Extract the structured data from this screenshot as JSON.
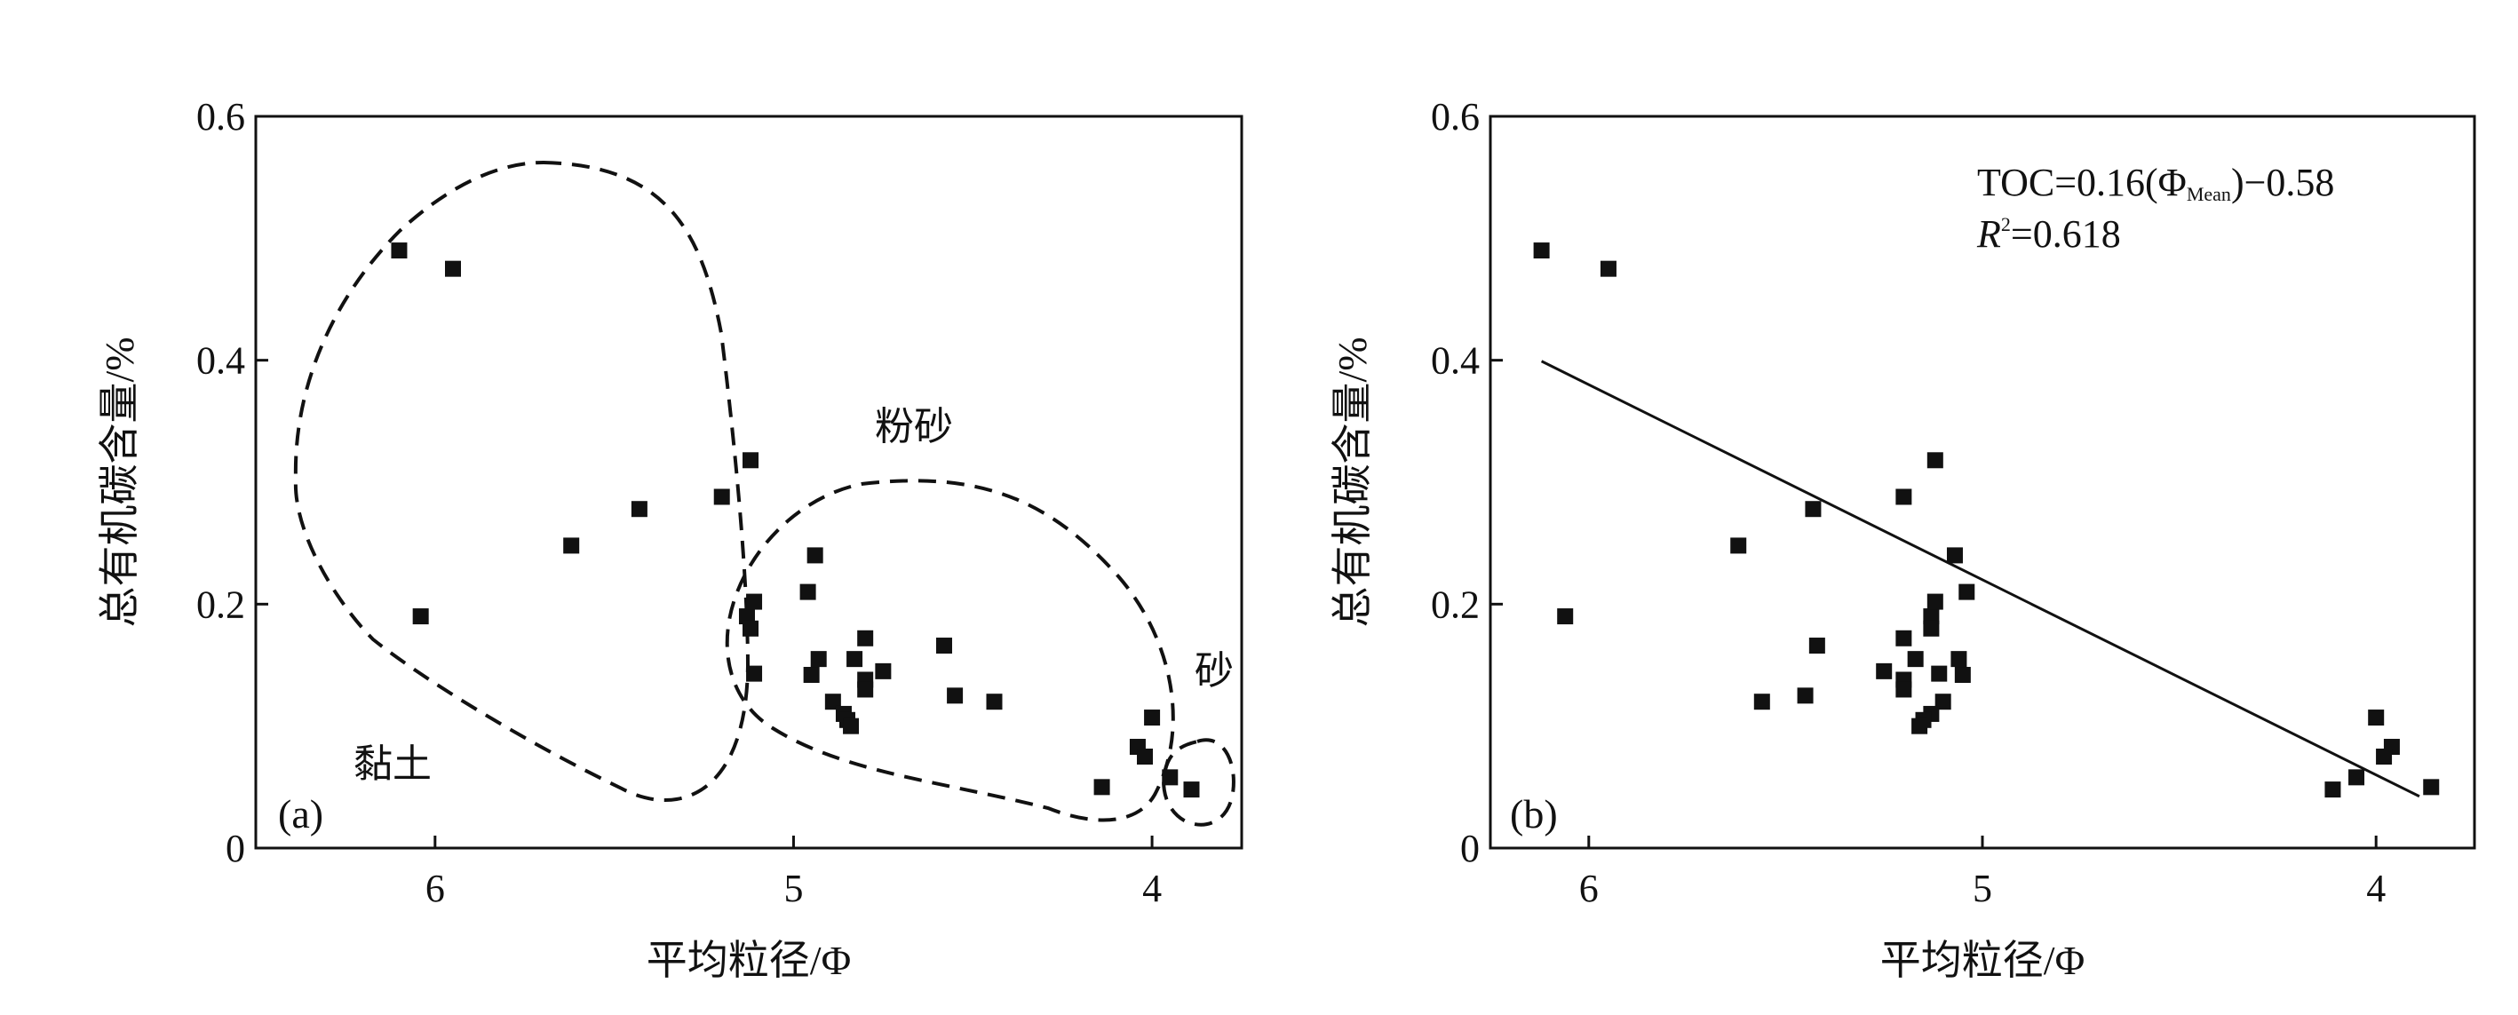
{
  "chart_data": [
    {
      "type": "scatter",
      "panel_label": "(a)",
      "xlabel": "平均粒径/Φ",
      "ylabel": "总有机碳含量/%",
      "xlim": [
        6.5,
        3.75
      ],
      "ylim": [
        0,
        0.6
      ],
      "x_ticks": [
        6,
        5,
        4
      ],
      "x_tick_labels": [
        "6",
        "5",
        "4"
      ],
      "y_ticks": [
        0,
        0.2,
        0.4,
        0.6
      ],
      "y_tick_labels": [
        "0",
        "0.2",
        "0.4",
        "0.6"
      ],
      "x_direction": "reversed",
      "grid": false,
      "region_labels": [
        "黏土",
        "粉砂",
        "砂"
      ],
      "marker": "filled-square",
      "colors": {
        "points": "#111111",
        "outline": "#111111"
      },
      "series": [
        {
          "points": [
            [
              6.1,
              0.49
            ],
            [
              6.04,
              0.19
            ],
            [
              5.95,
              0.475
            ],
            [
              5.62,
              0.248
            ],
            [
              5.43,
              0.278
            ],
            [
              5.2,
              0.288
            ],
            [
              5.12,
              0.318
            ],
            [
              5.13,
              0.19
            ],
            [
              5.12,
              0.18
            ],
            [
              5.11,
              0.202
            ],
            [
              5.11,
              0.143
            ],
            [
              4.96,
              0.21
            ],
            [
              4.94,
              0.24
            ],
            [
              4.95,
              0.142
            ],
            [
              4.93,
              0.155
            ],
            [
              4.89,
              0.12
            ],
            [
              4.86,
              0.11
            ],
            [
              4.85,
              0.105
            ],
            [
              4.84,
              0.1
            ],
            [
              4.83,
              0.155
            ],
            [
              4.8,
              0.172
            ],
            [
              4.8,
              0.138
            ],
            [
              4.8,
              0.13
            ],
            [
              4.75,
              0.145
            ],
            [
              4.58,
              0.166
            ],
            [
              4.55,
              0.125
            ],
            [
              4.44,
              0.12
            ],
            [
              4.14,
              0.05
            ],
            [
              4.04,
              0.083
            ],
            [
              4.02,
              0.075
            ],
            [
              4.0,
              0.107
            ],
            [
              3.95,
              0.058
            ],
            [
              3.89,
              0.048
            ]
          ]
        }
      ]
    },
    {
      "type": "scatter",
      "panel_label": "(b)",
      "xlabel": "平均粒径/Φ",
      "ylabel": "总有机碳含量/%",
      "xlim": [
        6.25,
        3.75
      ],
      "ylim": [
        0,
        0.6
      ],
      "x_ticks": [
        6,
        5,
        4
      ],
      "x_tick_labels": [
        "6",
        "5",
        "4"
      ],
      "y_ticks": [
        0,
        0.2,
        0.4,
        0.6
      ],
      "y_tick_labels": [
        "0",
        "0.2",
        "0.4",
        "0.6"
      ],
      "x_direction": "reversed",
      "grid": false,
      "equation": {
        "line1_main": "TOC=0.16(Φ",
        "line1_sub": "Mean",
        "line1_tail": ")−0.58",
        "line2_var": "R",
        "line2_sup": "2",
        "line2_tail": "=0.618"
      },
      "fit_line": {
        "slope": 0.16,
        "intercept": -0.58,
        "x_range": [
          6.12,
          3.89
        ]
      },
      "marker": "filled-square",
      "colors": {
        "points": "#111111",
        "line": "#111111"
      },
      "series": [
        {
          "points": [
            [
              6.12,
              0.49
            ],
            [
              6.06,
              0.19
            ],
            [
              5.95,
              0.475
            ],
            [
              5.62,
              0.248
            ],
            [
              5.43,
              0.278
            ],
            [
              5.2,
              0.288
            ],
            [
              5.12,
              0.318
            ],
            [
              5.13,
              0.19
            ],
            [
              5.13,
              0.18
            ],
            [
              5.12,
              0.202
            ],
            [
              5.11,
              0.143
            ],
            [
              5.04,
              0.21
            ],
            [
              5.07,
              0.24
            ],
            [
              5.05,
              0.142
            ],
            [
              5.06,
              0.155
            ],
            [
              5.1,
              0.12
            ],
            [
              5.13,
              0.11
            ],
            [
              5.15,
              0.105
            ],
            [
              5.16,
              0.1
            ],
            [
              5.17,
              0.155
            ],
            [
              5.2,
              0.172
            ],
            [
              5.2,
              0.138
            ],
            [
              5.2,
              0.13
            ],
            [
              5.25,
              0.145
            ],
            [
              5.42,
              0.166
            ],
            [
              5.45,
              0.125
            ],
            [
              5.56,
              0.12
            ],
            [
              3.86,
              0.05
            ],
            [
              3.96,
              0.083
            ],
            [
              3.98,
              0.075
            ],
            [
              4.0,
              0.107
            ],
            [
              4.05,
              0.058
            ],
            [
              4.11,
              0.048
            ]
          ]
        }
      ]
    }
  ]
}
